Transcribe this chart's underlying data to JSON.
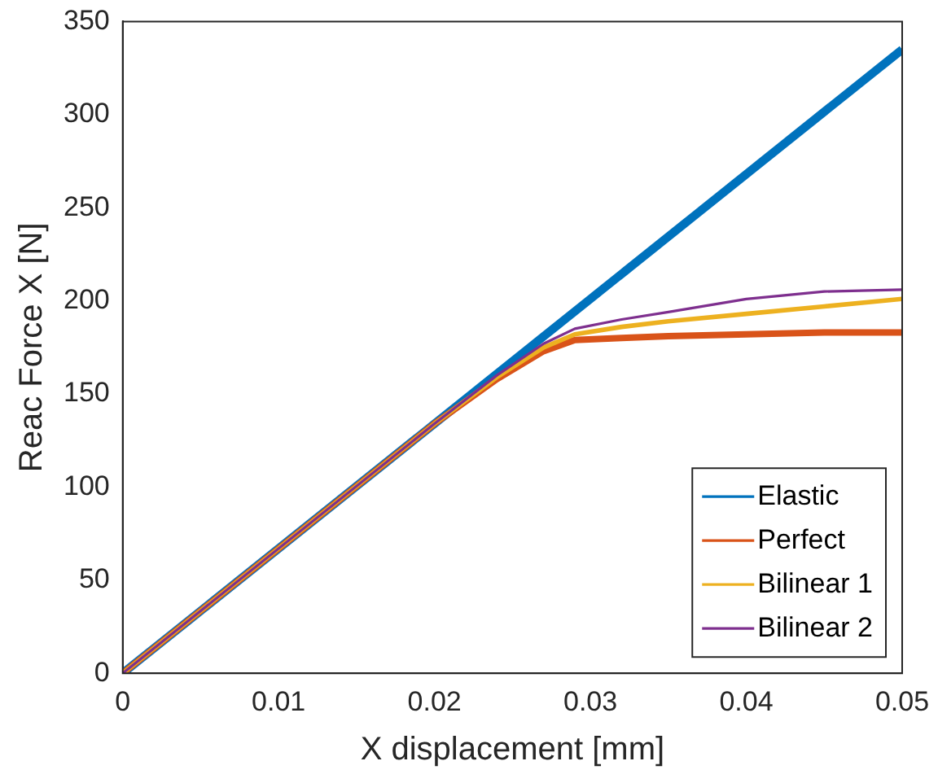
{
  "chart_data": {
    "type": "line",
    "xlabel": "X displacement [mm]",
    "ylabel": "Reac Force X [N]",
    "xlim": [
      0,
      0.05
    ],
    "xticks": [
      0,
      0.01,
      0.02,
      0.03,
      0.04,
      0.05
    ],
    "ylim": [
      0,
      350
    ],
    "yticks": [
      0,
      50,
      100,
      150,
      200,
      250,
      300,
      350
    ],
    "grid": false,
    "legend": "bottom right",
    "marker": "none",
    "line_style": "solid",
    "series": [
      {
        "name": "Elastic",
        "color": "#0072bd",
        "x": [
          0,
          0.05
        ],
        "values": [
          0,
          335
        ]
      },
      {
        "name": "Perfect",
        "color": "#d95319",
        "x": [
          0,
          0.02,
          0.024,
          0.027,
          0.029,
          0.032,
          0.035,
          0.04,
          0.045,
          0.05
        ],
        "values": [
          0,
          134,
          158,
          173,
          179,
          180,
          181,
          182,
          183,
          183
        ]
      },
      {
        "name": "Bilinear 1",
        "color": "#edb120",
        "x": [
          0,
          0.02,
          0.024,
          0.027,
          0.029,
          0.032,
          0.035,
          0.04,
          0.045,
          0.05
        ],
        "values": [
          0,
          134,
          159,
          175,
          182,
          186,
          189,
          193,
          197,
          201
        ]
      },
      {
        "name": "Bilinear 2",
        "color": "#7e2f8e",
        "x": [
          0,
          0.02,
          0.024,
          0.027,
          0.029,
          0.032,
          0.035,
          0.04,
          0.045,
          0.05
        ],
        "values": [
          0,
          134,
          160,
          177,
          185,
          190,
          194,
          201,
          205,
          206
        ]
      }
    ]
  }
}
